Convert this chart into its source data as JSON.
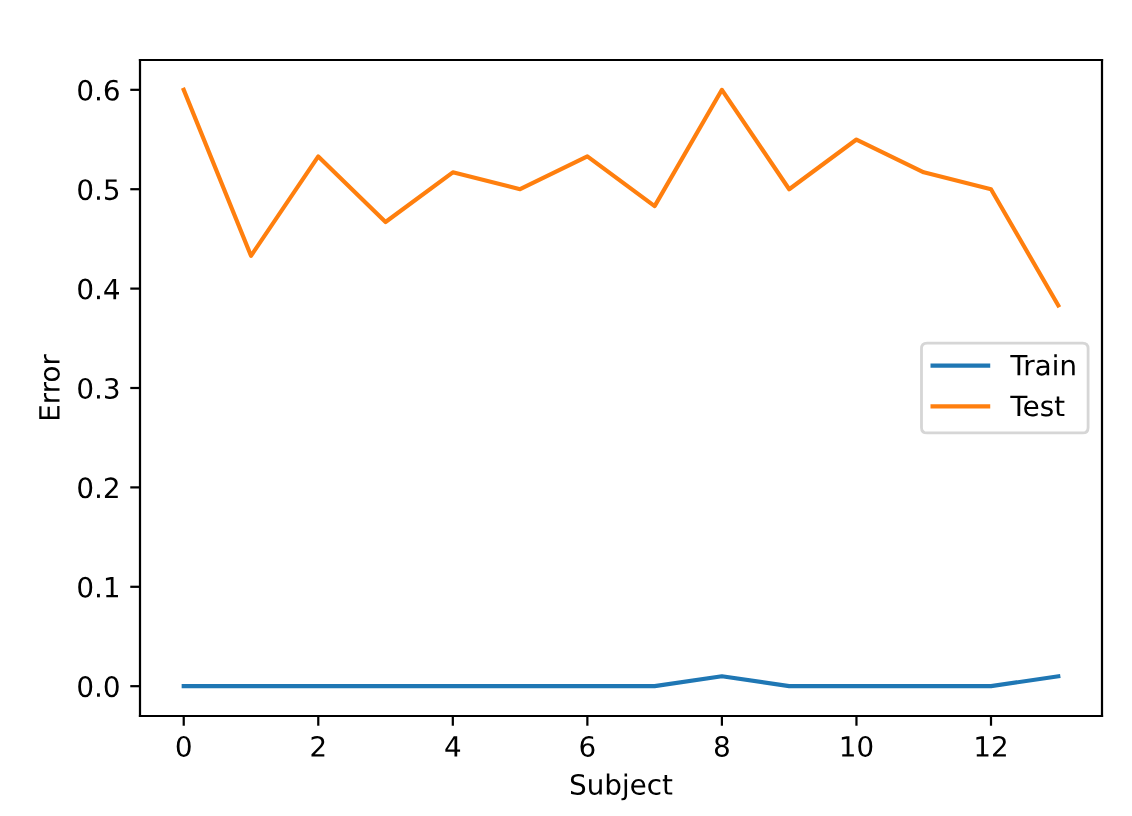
{
  "chart_data": {
    "type": "line",
    "xlabel": "Subject",
    "ylabel": "Error",
    "x": [
      0,
      1,
      2,
      3,
      4,
      5,
      6,
      7,
      8,
      9,
      10,
      11,
      12,
      13
    ],
    "series": [
      {
        "name": "Train",
        "color": "#1f77b4",
        "values": [
          0,
          0,
          0,
          0,
          0,
          0,
          0,
          0,
          0.01,
          0,
          0,
          0,
          0,
          0.01
        ]
      },
      {
        "name": "Test",
        "color": "#ff7f0e",
        "values": [
          0.6,
          0.433,
          0.533,
          0.467,
          0.517,
          0.5,
          0.533,
          0.483,
          0.6,
          0.5,
          0.55,
          0.517,
          0.5,
          0.383
        ]
      }
    ],
    "xlim": [
      -0.65,
      13.65
    ],
    "ylim": [
      -0.03,
      0.63
    ],
    "xticks": [
      0,
      2,
      4,
      6,
      8,
      10,
      12
    ],
    "yticks": [
      {
        "value": 0,
        "label": "0.0"
      },
      {
        "value": 0.1,
        "label": "0.1"
      },
      {
        "value": 0.2,
        "label": "0.2"
      },
      {
        "value": 0.3,
        "label": "0.3"
      },
      {
        "value": 0.4,
        "label": "0.4"
      },
      {
        "value": 0.5,
        "label": "0.5"
      },
      {
        "value": 0.6,
        "label": "0.6"
      }
    ],
    "grid": false,
    "legend": "right",
    "marker": "none",
    "line_style": "solid"
  }
}
